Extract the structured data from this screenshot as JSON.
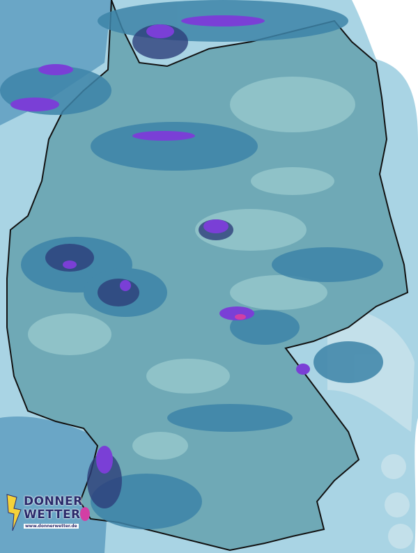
{
  "map": {
    "type": "precipitation radar",
    "region": "Germany",
    "colors": {
      "outside_light": "#a9d4e4",
      "outside_mid": "#7fbcd6",
      "land_base": "#6fa9b6",
      "land_light": "#8fc2c8",
      "medium": "#3d84a8",
      "heavy": "#2a5f8f",
      "very_heavy": "#2d3f7a",
      "purple": "#7a3fd6",
      "magenta": "#d23fa4",
      "border": "#111111"
    }
  },
  "logo": {
    "line1": "DONNER",
    "line2": "WETTER",
    "url": "www.donnerwetter.de",
    "bolt_color": "#f4d23a"
  }
}
